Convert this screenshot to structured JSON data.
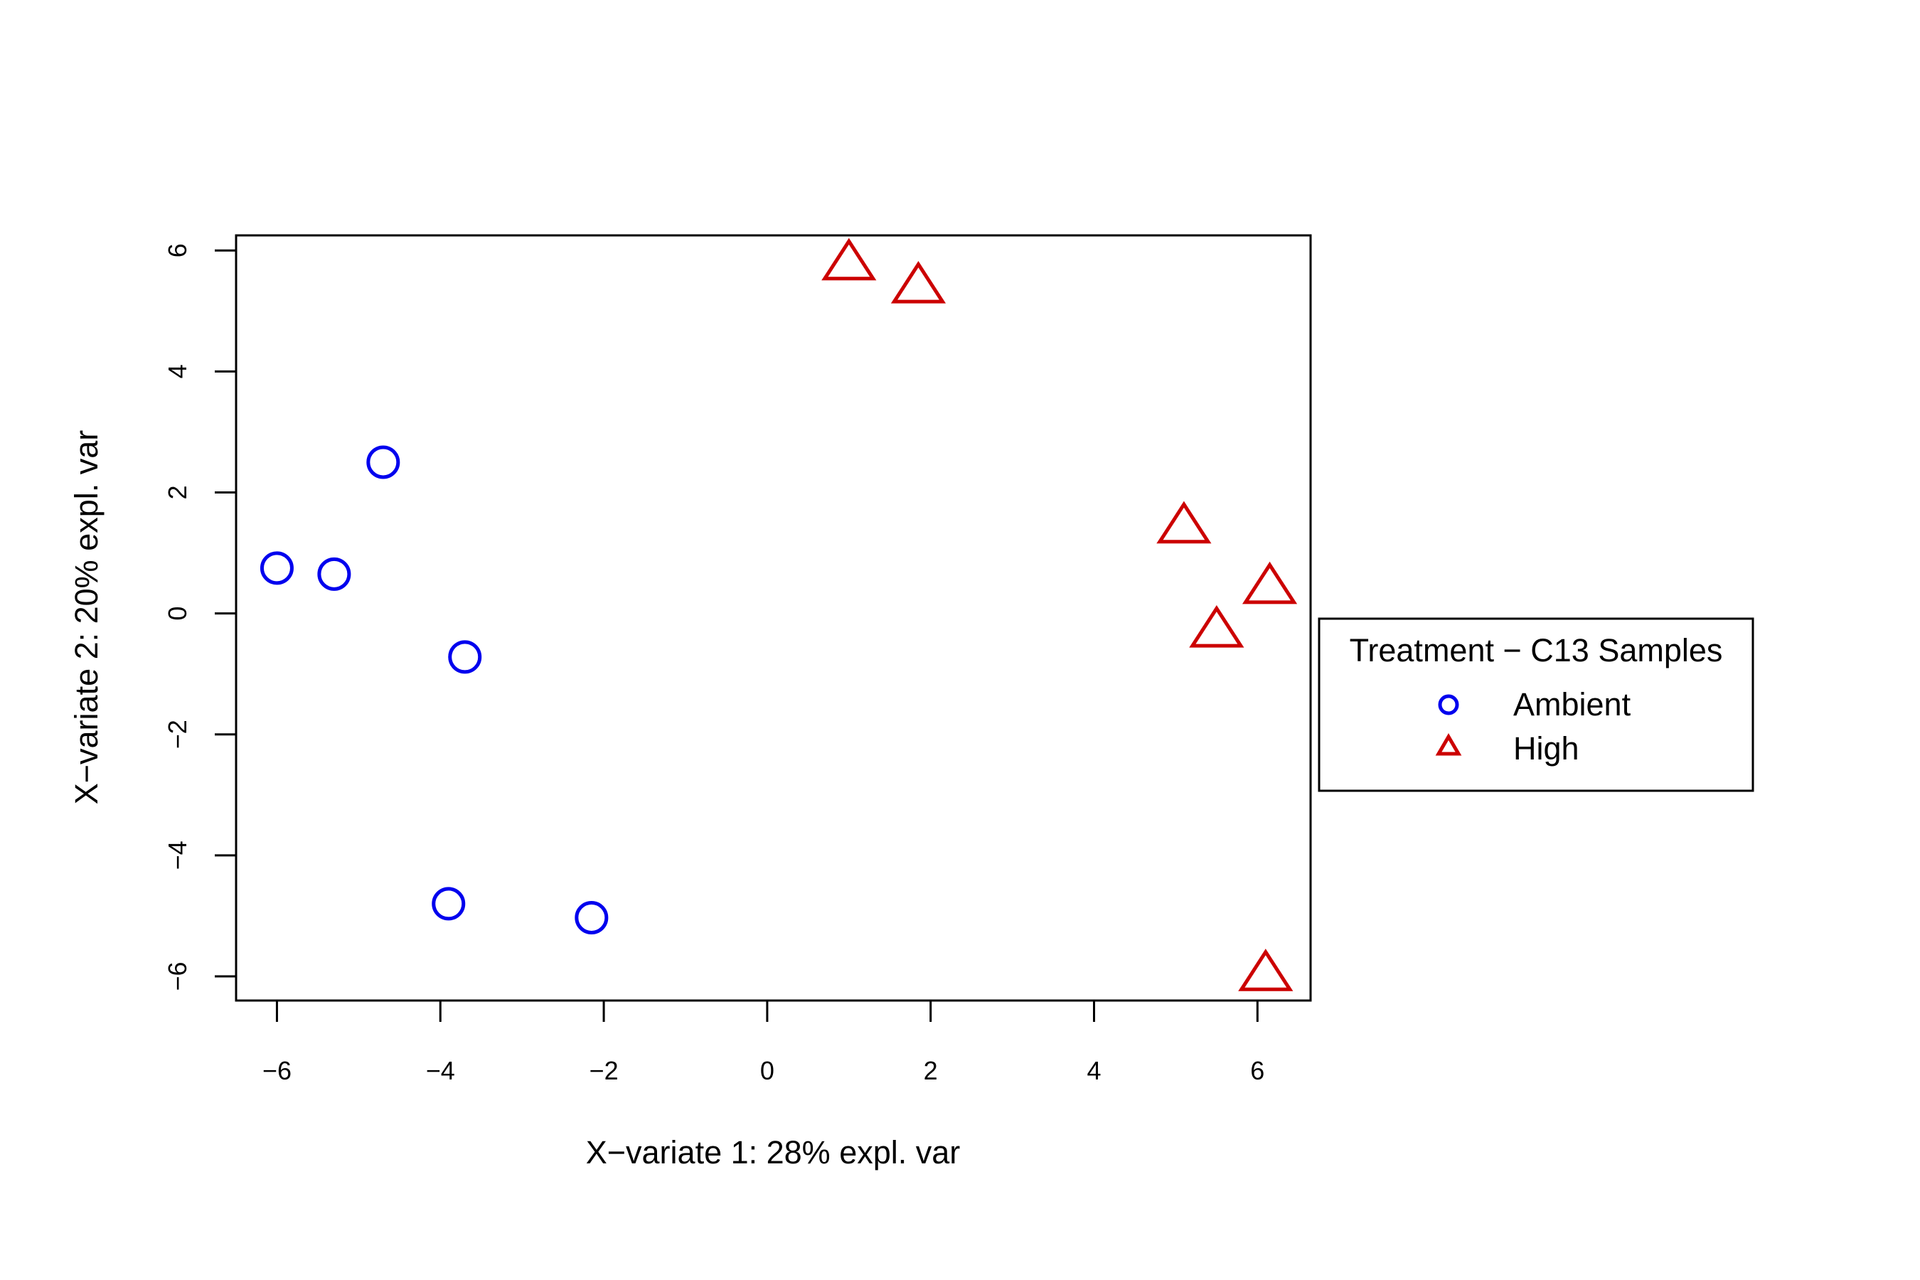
{
  "chart_data": {
    "type": "scatter",
    "title": "",
    "xlabel": "X−variate 1: 28% expl. var",
    "ylabel": "X−variate 2: 20% expl. var",
    "xlim": [
      -6.5,
      6.65
    ],
    "ylim": [
      -6.4,
      6.25
    ],
    "xticks": [
      -6,
      -4,
      -2,
      0,
      2,
      4,
      6
    ],
    "yticks": [
      -6,
      -4,
      -2,
      0,
      2,
      4,
      6
    ],
    "xtick_labels": [
      "−6",
      "−4",
      "−2",
      "0",
      "2",
      "4",
      "6"
    ],
    "ytick_labels": [
      "−6",
      "−4",
      "−2",
      "0",
      "2",
      "4",
      "6"
    ],
    "grid": false,
    "legend": {
      "title": "Treatment − C13 Samples",
      "placement": "right"
    },
    "series": [
      {
        "name": "Ambient",
        "marker": "circle",
        "color": "#0000ee",
        "points": [
          {
            "x": -4.7,
            "y": 2.5
          },
          {
            "x": -6.0,
            "y": 0.75
          },
          {
            "x": -5.3,
            "y": 0.65
          },
          {
            "x": -3.7,
            "y": -0.72
          },
          {
            "x": -3.9,
            "y": -4.8
          },
          {
            "x": -2.15,
            "y": -5.03
          }
        ]
      },
      {
        "name": "High",
        "marker": "triangle",
        "color": "#cc0000",
        "points": [
          {
            "x": 1.0,
            "y": 5.8
          },
          {
            "x": 1.85,
            "y": 5.42
          },
          {
            "x": 5.1,
            "y": 1.45
          },
          {
            "x": 6.15,
            "y": 0.45
          },
          {
            "x": 5.5,
            "y": -0.27
          },
          {
            "x": 6.1,
            "y": -5.95
          }
        ]
      }
    ]
  }
}
